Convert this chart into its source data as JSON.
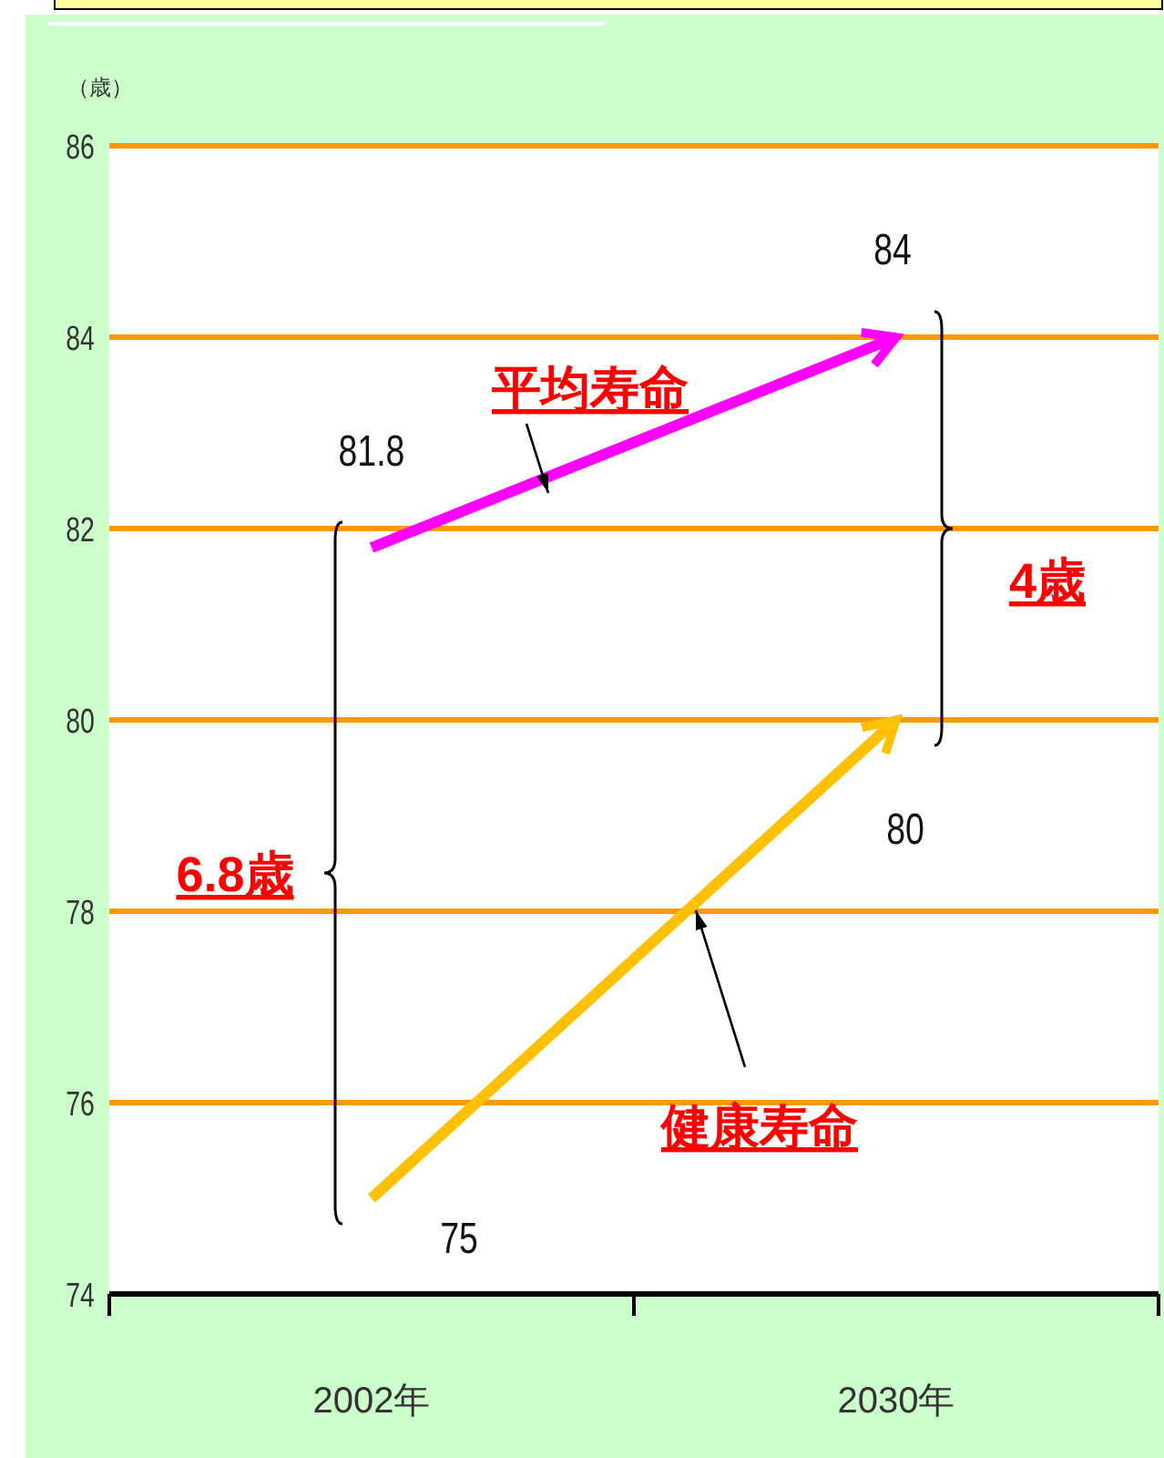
{
  "chart_data": {
    "type": "line",
    "ylabel": "（歳）",
    "categories": [
      "2002年",
      "2030年"
    ],
    "series": [
      {
        "name": "平均寿命",
        "color": "#ff00ff",
        "values": [
          81.8,
          84
        ]
      },
      {
        "name": "健康寿命",
        "color": "#ffc000",
        "values": [
          75,
          80
        ]
      }
    ],
    "ylim": [
      74,
      86
    ],
    "yticks": [
      74,
      76,
      78,
      80,
      82,
      84,
      86
    ],
    "grid": "y",
    "data_labels": true,
    "annotations": [
      "6.8歳",
      "4歳"
    ]
  }
}
